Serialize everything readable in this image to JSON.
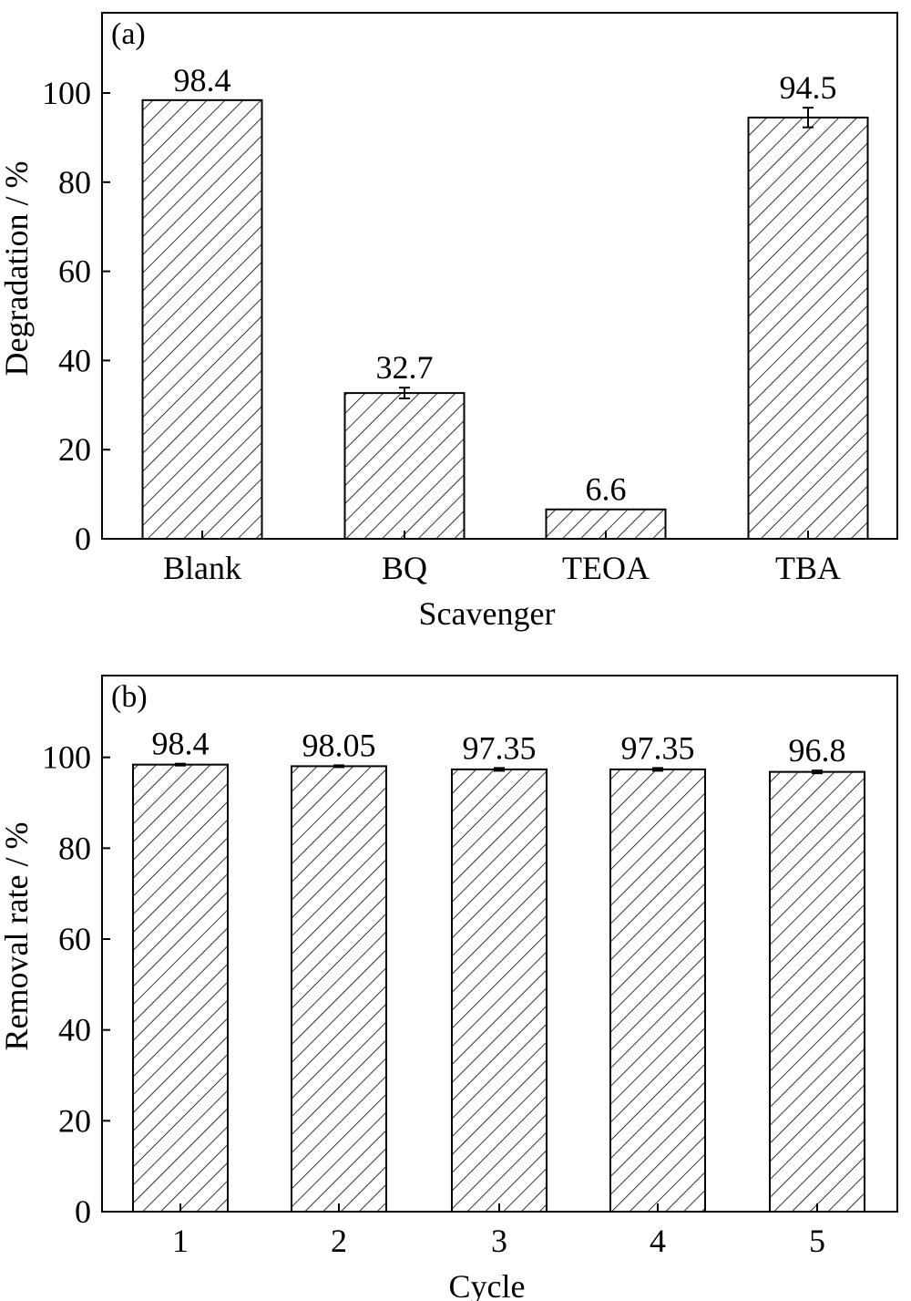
{
  "chart_data": [
    {
      "type": "bar",
      "panel_label": "(a)",
      "categories": [
        "Blank",
        "BQ",
        "TEOA",
        "TBA"
      ],
      "values": [
        98.4,
        32.7,
        6.6,
        94.5
      ],
      "errors": [
        0,
        1.2,
        0,
        2.2
      ],
      "value_labels": [
        "98.4",
        "32.7",
        "6.6",
        "94.5"
      ],
      "xlabel": "Scavenger",
      "ylabel": "Degradation / %",
      "ylim": [
        0,
        118
      ],
      "yticks": [
        "0",
        "20",
        "40",
        "60",
        "80",
        "100"
      ],
      "bar_fill": "hatched",
      "grid": false
    },
    {
      "type": "bar",
      "panel_label": "(b)",
      "categories": [
        "1",
        "2",
        "3",
        "4",
        "5"
      ],
      "values": [
        98.4,
        98.05,
        97.35,
        97.35,
        96.8
      ],
      "errors": [
        0.2,
        0.2,
        0.3,
        0.3,
        0.3
      ],
      "value_labels": [
        "98.4",
        "98.05",
        "97.35",
        "97.35",
        "96.8"
      ],
      "xlabel": "Cycle",
      "ylabel": "Removal rate / %",
      "ylim": [
        0,
        118
      ],
      "yticks": [
        "0",
        "20",
        "40",
        "60",
        "80",
        "100"
      ],
      "bar_fill": "hatched",
      "grid": false
    }
  ]
}
